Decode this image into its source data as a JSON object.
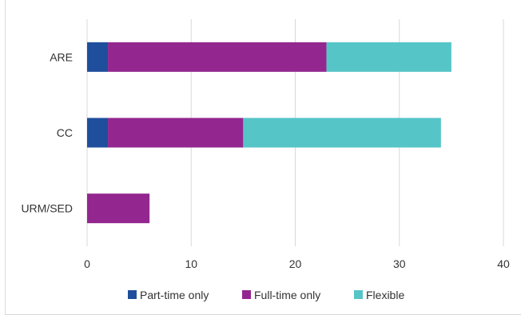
{
  "chart_data": {
    "type": "bar",
    "orientation": "horizontal",
    "stacked": true,
    "categories": [
      "ARE",
      "CC",
      "URM/SED"
    ],
    "series": [
      {
        "name": "Part-time only",
        "color": "#1f4e9c",
        "values": [
          2,
          2,
          0
        ]
      },
      {
        "name": "Full-time only",
        "color": "#93278f",
        "values": [
          21,
          13,
          6
        ]
      },
      {
        "name": "Flexible",
        "color": "#56c5c8",
        "values": [
          12,
          19,
          0
        ]
      }
    ],
    "xlim": [
      0,
      40
    ],
    "xticks": [
      0,
      10,
      20,
      30,
      40
    ],
    "xtick_labels": [
      "0",
      "10",
      "20",
      "30",
      "40"
    ],
    "grid": true,
    "legend_position": "bottom",
    "title": "",
    "xlabel": "",
    "ylabel": ""
  }
}
